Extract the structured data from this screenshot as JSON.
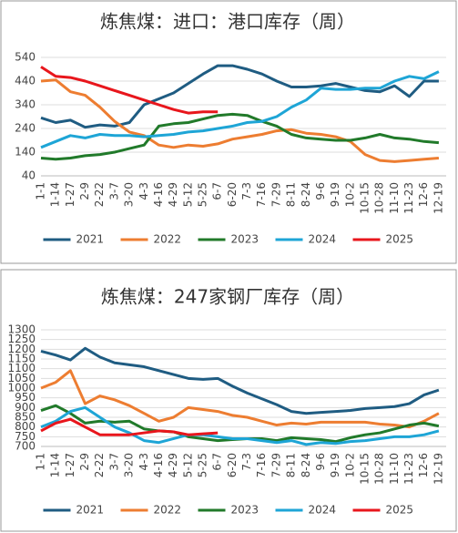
{
  "chart_data": [
    {
      "type": "line",
      "title": "炼焦煤：进口：港口库存（周）",
      "categories": [
        "1-1",
        "1-14",
        "1-27",
        "2-9",
        "2-22",
        "3-7",
        "3-20",
        "4-3",
        "4-16",
        "4-29",
        "5-12",
        "5-25",
        "6-7",
        "6-20",
        "7-3",
        "7-16",
        "7-29",
        "8-11",
        "8-24",
        "9-6",
        "9-19",
        "10-2",
        "10-15",
        "10-28",
        "11-10",
        "11-23",
        "12-6",
        "12-19"
      ],
      "ylim": [
        40,
        540
      ],
      "yticks": [
        40,
        140,
        240,
        340,
        440,
        540
      ],
      "grid": true,
      "legend": "bottom",
      "series": [
        {
          "name": "2021",
          "color": "#1f5c82",
          "values": [
            285,
            265,
            275,
            245,
            255,
            250,
            265,
            340,
            365,
            390,
            430,
            470,
            505,
            505,
            490,
            470,
            440,
            415,
            415,
            420,
            430,
            415,
            400,
            395,
            420,
            375,
            440,
            440
          ]
        },
        {
          "name": "2022",
          "color": "#ed7d31",
          "values": [
            440,
            445,
            395,
            380,
            330,
            270,
            225,
            210,
            170,
            160,
            170,
            165,
            175,
            195,
            205,
            215,
            230,
            235,
            220,
            215,
            205,
            185,
            130,
            105,
            100,
            105,
            110,
            115
          ]
        },
        {
          "name": "2023",
          "color": "#217a2a",
          "values": [
            115,
            110,
            115,
            125,
            130,
            140,
            155,
            170,
            250,
            260,
            265,
            280,
            295,
            300,
            295,
            270,
            250,
            215,
            200,
            195,
            190,
            190,
            200,
            215,
            200,
            195,
            185,
            180
          ]
        },
        {
          "name": "2024",
          "color": "#1ea5d6",
          "values": [
            160,
            185,
            210,
            200,
            215,
            210,
            210,
            205,
            210,
            215,
            225,
            230,
            240,
            250,
            265,
            270,
            290,
            330,
            360,
            410,
            405,
            405,
            410,
            410,
            440,
            460,
            450,
            480
          ]
        },
        {
          "name": "2025",
          "color": "#e8161c",
          "values": [
            500,
            460,
            455,
            440,
            420,
            400,
            380,
            360,
            340,
            320,
            305,
            310,
            310,
            null,
            null,
            null,
            null,
            null,
            null,
            null,
            null,
            null,
            null,
            null,
            null,
            null,
            null,
            null
          ]
        }
      ]
    },
    {
      "type": "line",
      "title": "炼焦煤：247家钢厂库存（周）",
      "categories": [
        "1-1",
        "1-14",
        "1-27",
        "2-9",
        "2-22",
        "3-7",
        "3-20",
        "4-3",
        "4-16",
        "4-29",
        "5-12",
        "5-25",
        "6-7",
        "6-20",
        "7-3",
        "7-16",
        "7-29",
        "8-11",
        "8-24",
        "9-6",
        "9-19",
        "10-2",
        "10-15",
        "10-28",
        "11-10",
        "11-23",
        "12-6",
        "12-19"
      ],
      "ylim": [
        700,
        1300
      ],
      "yticks": [
        700,
        750,
        800,
        850,
        900,
        950,
        1000,
        1050,
        1100,
        1150,
        1200,
        1250,
        1300
      ],
      "grid": true,
      "legend": "bottom",
      "series": [
        {
          "name": "2021",
          "color": "#1f5c82",
          "values": [
            1190,
            1170,
            1145,
            1205,
            1160,
            1130,
            1120,
            1110,
            1090,
            1070,
            1050,
            1045,
            1050,
            1010,
            975,
            945,
            915,
            880,
            870,
            875,
            880,
            885,
            895,
            900,
            905,
            920,
            965,
            990
          ]
        },
        {
          "name": "2022",
          "color": "#ed7d31",
          "values": [
            1000,
            1030,
            1090,
            920,
            960,
            940,
            910,
            870,
            830,
            850,
            900,
            890,
            880,
            860,
            850,
            830,
            810,
            820,
            815,
            825,
            825,
            825,
            825,
            815,
            810,
            800,
            830,
            870
          ]
        },
        {
          "name": "2023",
          "color": "#217a2a",
          "values": [
            885,
            910,
            870,
            820,
            830,
            825,
            830,
            790,
            780,
            775,
            750,
            740,
            730,
            735,
            740,
            740,
            730,
            745,
            740,
            735,
            725,
            745,
            760,
            770,
            790,
            810,
            820,
            805
          ]
        },
        {
          "name": "2024",
          "color": "#1ea5d6",
          "values": [
            800,
            830,
            880,
            900,
            850,
            800,
            770,
            730,
            720,
            740,
            760,
            760,
            750,
            740,
            740,
            730,
            720,
            730,
            710,
            720,
            715,
            725,
            730,
            740,
            750,
            750,
            760,
            780
          ]
        },
        {
          "name": "2025",
          "color": "#e8161c",
          "values": [
            780,
            820,
            840,
            800,
            760,
            760,
            760,
            770,
            780,
            775,
            760,
            765,
            770,
            null,
            null,
            null,
            null,
            null,
            null,
            null,
            null,
            null,
            null,
            null,
            null,
            null,
            null,
            null
          ]
        }
      ]
    }
  ]
}
